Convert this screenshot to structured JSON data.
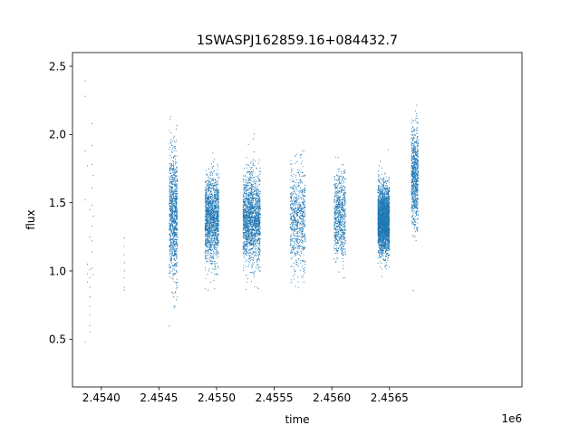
{
  "chart_data": {
    "type": "scatter",
    "title": "1SWASPJ162859.16+084432.7",
    "xlabel": "time",
    "ylabel": "flux",
    "x_offset_label": "1e6",
    "xlim": [
      2.45375,
      2.45765
    ],
    "ylim": [
      0.15,
      2.6
    ],
    "x_ticks": [
      2.454,
      2.4545,
      2.455,
      2.4555,
      2.456,
      2.4565
    ],
    "x_tick_labels": [
      "2.4540",
      "2.4545",
      "2.4550",
      "2.4555",
      "2.4560",
      "2.4565"
    ],
    "y_ticks": [
      0.5,
      1.0,
      1.5,
      2.0,
      2.5
    ],
    "y_tick_labels": [
      "0.5",
      "1.0",
      "1.5",
      "2.0",
      "2.5"
    ],
    "grid": false,
    "marker_color": "#1f77b4",
    "series": [
      {
        "points": [
          [
            2.45386,
            2.39
          ],
          [
            2.45386,
            2.28
          ],
          [
            2.45386,
            1.88
          ],
          [
            2.45386,
            1.52
          ],
          [
            2.45386,
            0.48
          ],
          [
            2.45388,
            1.77
          ],
          [
            2.45388,
            1.05
          ],
          [
            2.45388,
            0.98
          ],
          [
            2.45388,
            0.92
          ],
          [
            2.4539,
            1.01
          ],
          [
            2.4539,
            0.95
          ],
          [
            2.4539,
            0.88
          ],
          [
            2.4539,
            0.81
          ],
          [
            2.4539,
            0.74
          ],
          [
            2.4539,
            0.68
          ],
          [
            2.4539,
            0.6
          ],
          [
            2.4539,
            0.55
          ],
          [
            2.4539,
            1.45
          ],
          [
            2.4539,
            1.25
          ],
          [
            2.45392,
            1.92
          ],
          [
            2.45392,
            1.78
          ],
          [
            2.45392,
            1.61
          ],
          [
            2.45392,
            1.48
          ],
          [
            2.45392,
            1.33
          ],
          [
            2.45392,
            1.22
          ],
          [
            2.45392,
            1.14
          ],
          [
            2.45392,
            2.08
          ],
          [
            2.45392,
            1.02
          ],
          [
            2.45393,
            1.7
          ],
          [
            2.45393,
            1.4
          ],
          [
            2.45393,
            0.97
          ],
          [
            2.4542,
            1.24
          ],
          [
            2.4542,
            1.18
          ],
          [
            2.4542,
            1.12
          ],
          [
            2.4542,
            1.06
          ],
          [
            2.4542,
            1.0
          ],
          [
            2.4542,
            0.95
          ],
          [
            2.4542,
            0.88
          ],
          [
            2.4542,
            0.86
          ]
        ]
      }
    ],
    "clusters": [
      {
        "x_min": 2.45459,
        "x_max": 2.45466,
        "y_center": 1.4,
        "y_spread": 0.42,
        "count": 950
      },
      {
        "x_min": 2.4549,
        "x_max": 2.45502,
        "y_center": 1.38,
        "y_spread": 0.28,
        "count": 1500
      },
      {
        "x_min": 2.45523,
        "x_max": 2.45538,
        "y_center": 1.38,
        "y_spread": 0.3,
        "count": 1700
      },
      {
        "x_min": 2.45564,
        "x_max": 2.45577,
        "y_center": 1.38,
        "y_spread": 0.33,
        "count": 700
      },
      {
        "x_min": 2.45602,
        "x_max": 2.45612,
        "y_center": 1.4,
        "y_spread": 0.28,
        "count": 700
      },
      {
        "x_min": 2.4564,
        "x_max": 2.4565,
        "y_center": 1.37,
        "y_spread": 0.22,
        "count": 2600
      },
      {
        "x_min": 2.45669,
        "x_max": 2.45675,
        "y_center": 1.7,
        "y_spread": 0.32,
        "count": 800
      }
    ]
  }
}
